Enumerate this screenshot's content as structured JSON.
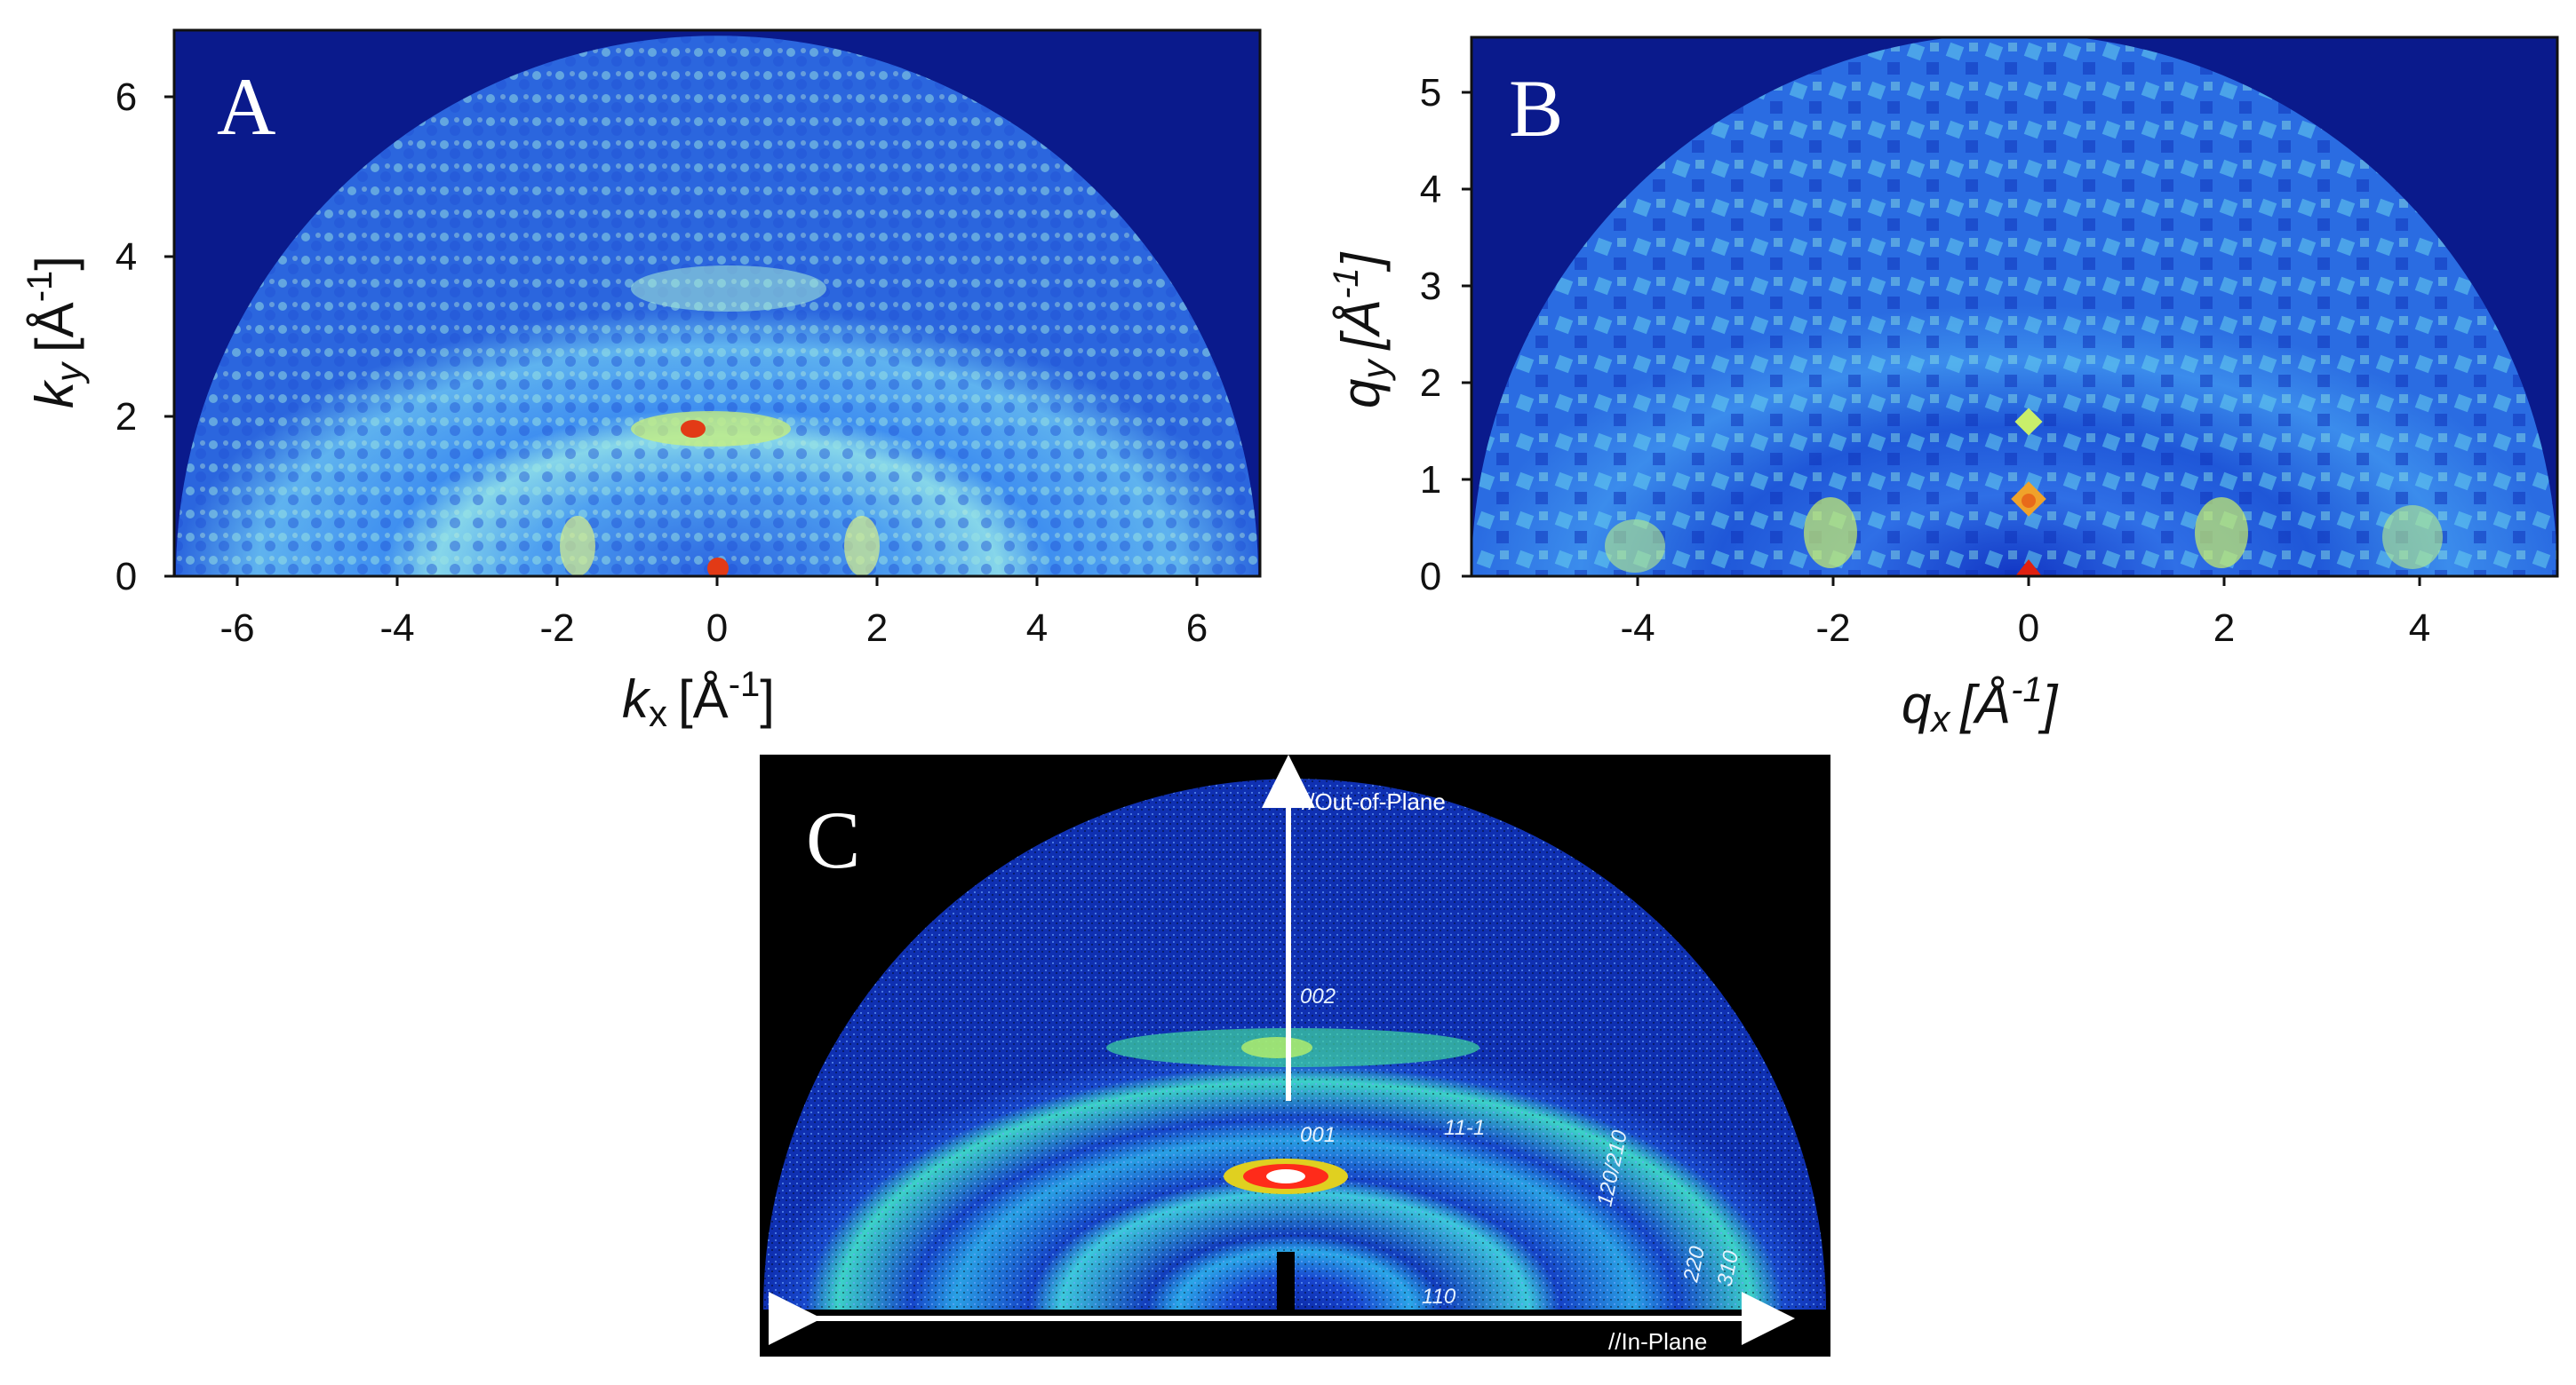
{
  "panels": {
    "A": {
      "letter": "A",
      "xlabel_main": "k",
      "xlabel_sub": "x",
      "xlabel_unit": "[Å",
      "xlabel_exp": "-1",
      "xlabel_close": "]",
      "ylabel_main": "k",
      "ylabel_sub": "y",
      "ylabel_unit": "[Å",
      "ylabel_exp": "-1",
      "ylabel_close": "]",
      "xticks": [
        "-6",
        "-4",
        "-2",
        "0",
        "2",
        "4",
        "6"
      ],
      "yticks": [
        "0",
        "2",
        "4",
        "6"
      ],
      "colors": {
        "background": "#0a1a8c",
        "field": "#3d8ff0",
        "ring": "#8fe3e6",
        "hot": "#e23a16"
      }
    },
    "B": {
      "letter": "B",
      "xlabel": "q",
      "xlabel_sub": "x",
      "xlabel_unit": "[Å",
      "xlabel_exp": "-1",
      "xlabel_close": "]",
      "ylabel": "q",
      "ylabel_sub": "y",
      "ylabel_unit": "[Å",
      "ylabel_exp": "-1",
      "ylabel_close": "]",
      "xticks": [
        "-4",
        "-2",
        "0",
        "2",
        "4"
      ],
      "yticks": [
        "0",
        "1",
        "2",
        "3",
        "4",
        "5"
      ],
      "colors": {
        "background": "#0a1a8c",
        "field": "#2d6fe6",
        "ring": "#79d8ea",
        "hot": "#e86a1a"
      }
    },
    "C": {
      "letter": "C",
      "out_of_plane": "//Out-of-Plane",
      "in_plane": "//In-Plane",
      "reflections": [
        "002",
        "001",
        "11-1",
        "120/210",
        "110",
        "220",
        "310"
      ],
      "colors": {
        "background": "#000000",
        "field": "#1540c8",
        "ring": "#3ad0e0",
        "hot": "#ff2b1a"
      }
    }
  }
}
